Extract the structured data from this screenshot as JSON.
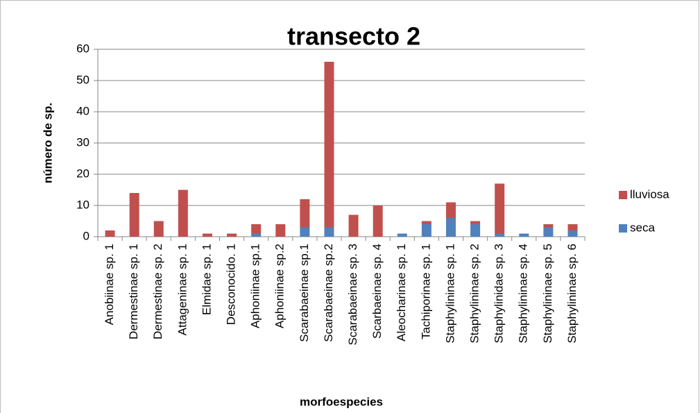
{
  "chart_data": {
    "type": "stacked_bar",
    "title": "transecto 2",
    "x_label": "morfoespecies",
    "y_label": "número de sp.",
    "categories": [
      "Anobiinae sp. 1",
      "Dermestinae sp. 1",
      "Dermestinae sp. 2",
      "Attageninae sp. 1",
      "Elmidae sp. 1",
      "Desconocido. 1",
      "Aphoniinae sp.1",
      "Aphoniinae sp.2",
      "Scarabaeinae sp.1",
      "Scarabaeinae sp.2",
      "Scarabaeinae sp. 3",
      "Scarbaeinae sp. 4",
      "Aleocharinae sp. 1",
      "Tachiporinae sp. 1",
      "Staphylininae sp. 1",
      "Staphylininae sp. 2",
      "Staphylinidae sp. 3",
      "Staphylininae sp. 4",
      "Staphylininae sp. 5",
      "Staphylininae sp. 6"
    ],
    "series": [
      {
        "name": "seca",
        "color": "#4f81bd",
        "values": [
          0,
          0,
          0,
          0,
          0,
          0,
          1,
          0,
          3,
          3,
          0,
          0,
          1,
          4,
          6,
          4,
          1,
          1,
          3,
          2
        ]
      },
      {
        "name": "lluviosa",
        "color": "#c0504d",
        "values": [
          2,
          14,
          5,
          15,
          1,
          1,
          3,
          4,
          9,
          53,
          7,
          10,
          0,
          1,
          5,
          1,
          16,
          0,
          1,
          2
        ]
      }
    ],
    "ylim": [
      0,
      60
    ],
    "yticks": [
      0,
      10,
      20,
      30,
      40,
      50,
      60
    ],
    "grid": true,
    "legend": "right"
  }
}
